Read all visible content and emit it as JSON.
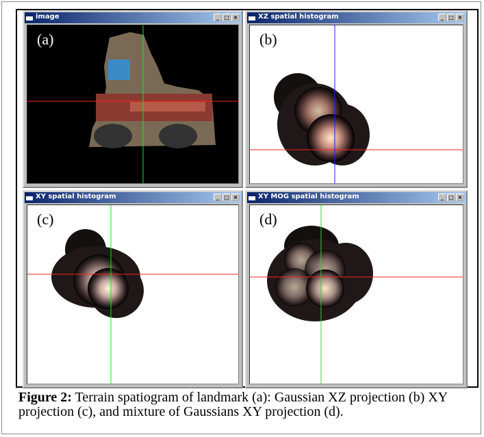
{
  "windows": [
    {
      "title": "image",
      "label": "(a)"
    },
    {
      "title": "XZ spatial histogram",
      "label": "(b)"
    },
    {
      "title": "XY spatial histogram",
      "label": "(c)"
    },
    {
      "title": "XY MOG spatial histogram",
      "label": "(d)"
    }
  ],
  "caption": {
    "heading": "Figure 2:",
    "text": "Terrain spatiogram of landmark (a): Gaussian XZ projection (b) XY projection (c), and mixture of Gaussians XY projection (d)."
  }
}
